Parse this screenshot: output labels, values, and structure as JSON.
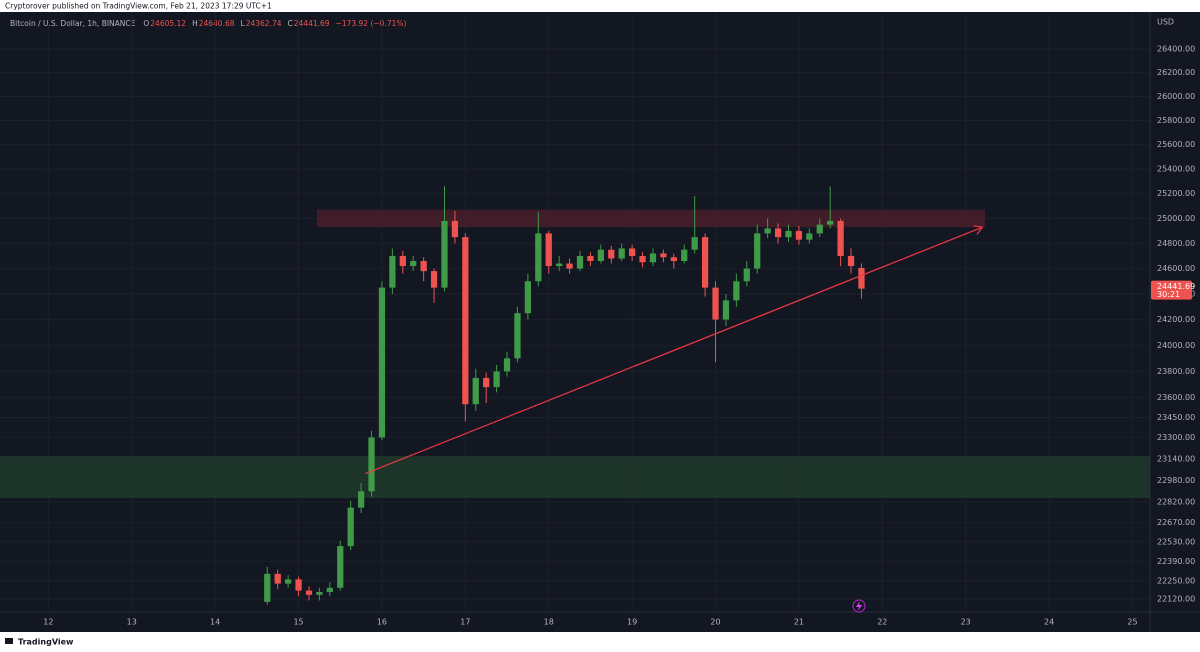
{
  "publisher": "Cryptorover published on TradingView.com, Feb 21, 2023 17:29 UTC+1",
  "footer": "TradingView",
  "chart_data": {
    "type": "candlestick",
    "symbol": "Bitcoin / U.S. Dollar, 1h, BINANCE",
    "ohlc_labels": [
      "O",
      "H",
      "L",
      "C"
    ],
    "change": "−173.92 (−0.71%)",
    "currency": "USD",
    "countdown": "30:21",
    "log_scale": true,
    "grid": true,
    "up_color": "#3f9b47",
    "down_color": "#ef5350",
    "xlim": [
      11.42,
      25.21
    ],
    "xticks": [
      12,
      13,
      14,
      15,
      16,
      17,
      18,
      19,
      20,
      21,
      22,
      23,
      24,
      25
    ],
    "ylim": [
      22028,
      26716
    ],
    "yticks": [
      {
        "value": 26400,
        "label": "26400.00"
      },
      {
        "value": 26200,
        "label": "26200.00"
      },
      {
        "value": 26000,
        "label": "26000.00"
      },
      {
        "value": 25800,
        "label": "25800.00"
      },
      {
        "value": 25600,
        "label": "25600.00"
      },
      {
        "value": 25400,
        "label": "25400.00"
      },
      {
        "value": 25200,
        "label": "25200.00"
      },
      {
        "value": 25000,
        "label": "25000.00"
      },
      {
        "value": 24800,
        "label": "24800.00"
      },
      {
        "value": 24600,
        "label": "24600.00"
      },
      {
        "value": 24400,
        "label": "24400.00"
      },
      {
        "value": 24200,
        "label": "24200.00"
      },
      {
        "value": 24000,
        "label": "24000.00"
      },
      {
        "value": 23800,
        "label": "23800.00"
      },
      {
        "value": 23600,
        "label": "23600.00"
      },
      {
        "value": 23450,
        "label": "23450.00"
      },
      {
        "value": 23300,
        "label": "23300.00"
      },
      {
        "value": 23140,
        "label": "23140.00"
      },
      {
        "value": 22980,
        "label": "22980.00"
      },
      {
        "value": 22820,
        "label": "22820.00"
      },
      {
        "value": 22670,
        "label": "22670.00"
      },
      {
        "value": 22530,
        "label": "22530.00"
      },
      {
        "value": 22390,
        "label": "22390.00"
      },
      {
        "value": 22250,
        "label": "22250.00"
      },
      {
        "value": 22120,
        "label": "22120.00"
      }
    ],
    "x": [
      14.625,
      14.75,
      14.875,
      15.0,
      15.125,
      15.25,
      15.375,
      15.5,
      15.625,
      15.75,
      15.875,
      16.0,
      16.125,
      16.25,
      16.375,
      16.5,
      16.625,
      16.75,
      16.875,
      17.0,
      17.125,
      17.25,
      17.375,
      17.5,
      17.625,
      17.75,
      17.875,
      18.0,
      18.125,
      18.25,
      18.375,
      18.5,
      18.625,
      18.75,
      18.875,
      19.0,
      19.125,
      19.25,
      19.375,
      19.5,
      19.625,
      19.75,
      19.875,
      20.0,
      20.125,
      20.25,
      20.375,
      20.5,
      20.625,
      20.75,
      20.875,
      21.0,
      21.125,
      21.25,
      21.375,
      21.5,
      21.625,
      21.75
    ],
    "open": [
      22100,
      22300,
      22230,
      22260,
      22180,
      22150,
      22170,
      22200,
      22500,
      22780,
      22900,
      23300,
      24450,
      24700,
      24620,
      24660,
      24580,
      24450,
      24980,
      24850,
      23550,
      23750,
      23680,
      23800,
      23900,
      24250,
      24500,
      24880,
      24620,
      24640,
      24600,
      24700,
      24660,
      24750,
      24680,
      24760,
      24700,
      24650,
      24720,
      24690,
      24660,
      24750,
      24850,
      24450,
      24200,
      24350,
      24500,
      24600,
      24880,
      24920,
      24850,
      24900,
      24830,
      24880,
      24950,
      24980,
      24700,
      24605.12
    ],
    "high": [
      22350,
      22330,
      22290,
      22280,
      22210,
      22200,
      22240,
      22540,
      22830,
      22960,
      23350,
      24500,
      24760,
      24740,
      24700,
      24690,
      24600,
      25260,
      25060,
      24880,
      23820,
      23790,
      23850,
      23950,
      24300,
      24560,
      25050,
      24900,
      24700,
      24680,
      24740,
      24730,
      24790,
      24780,
      24800,
      24790,
      24730,
      24760,
      24750,
      24720,
      24790,
      25180,
      24880,
      24500,
      24400,
      24560,
      24660,
      24950,
      25000,
      24960,
      24950,
      24940,
      24920,
      25000,
      25260,
      25000,
      24760,
      24640.68
    ],
    "low": [
      22080,
      22190,
      22200,
      22140,
      22110,
      22110,
      22140,
      22180,
      22470,
      22740,
      22860,
      23280,
      24400,
      24560,
      24580,
      24500,
      24330,
      24420,
      24800,
      23420,
      23500,
      23560,
      23640,
      23760,
      23870,
      24200,
      24460,
      24560,
      24580,
      24560,
      24580,
      24620,
      24640,
      24640,
      24660,
      24660,
      24610,
      24620,
      24650,
      24600,
      24640,
      24720,
      24380,
      23870,
      24150,
      24300,
      24460,
      24560,
      24840,
      24800,
      24810,
      24790,
      24800,
      24850,
      24920,
      24620,
      24560,
      24362.74
    ],
    "close": [
      22300,
      22230,
      22260,
      22180,
      22150,
      22170,
      22200,
      22500,
      22780,
      22900,
      23300,
      24450,
      24700,
      24620,
      24660,
      24580,
      24450,
      24980,
      24850,
      23550,
      23750,
      23680,
      23800,
      23900,
      24250,
      24500,
      24880,
      24620,
      24640,
      24600,
      24700,
      24660,
      24750,
      24680,
      24760,
      24700,
      24650,
      24720,
      24690,
      24660,
      24750,
      24850,
      24450,
      24200,
      24350,
      24500,
      24600,
      24880,
      24920,
      24850,
      24900,
      24830,
      24880,
      24950,
      24980,
      24700,
      24620,
      24441.69
    ],
    "zones": [
      {
        "color": "#4a1f2a",
        "x": [
          15.22,
          23.23
        ],
        "y": [
          24930,
          25070
        ]
      },
      {
        "color": "#1f3a2c",
        "x": [
          11.42,
          25.21
        ],
        "y": [
          22850,
          23160
        ]
      }
    ],
    "trendline": {
      "color": "#f23645",
      "x": [
        15.8,
        23.2
      ],
      "y": [
        23030,
        24930
      ]
    }
  }
}
